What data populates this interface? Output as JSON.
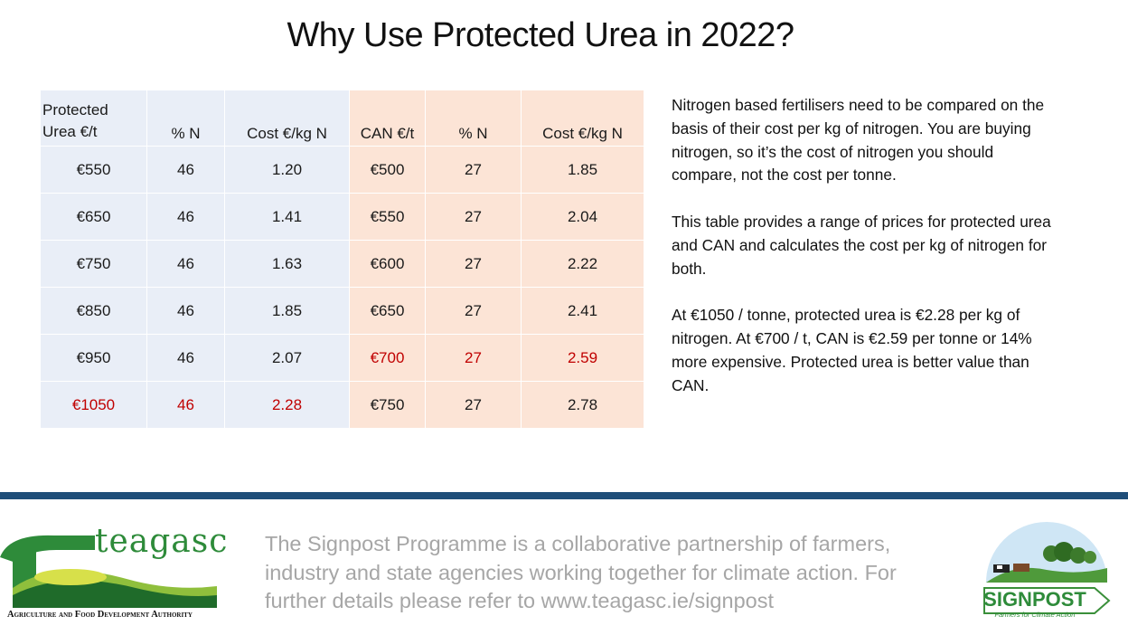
{
  "title": "Why Use Protected Urea in 2022?",
  "table": {
    "headers": {
      "urea_price_line1": "Protected",
      "urea_price_line2": "Urea €/t",
      "urea_n": "% N",
      "urea_cost": "Cost €/kg N",
      "can_price": "CAN €/t",
      "can_n": "% N",
      "can_cost": "Cost €/kg N"
    },
    "rows": [
      {
        "urea_price": "€550",
        "urea_n": "46",
        "urea_cost": "1.20",
        "can_price": "€500",
        "can_n": "27",
        "can_cost": "1.85"
      },
      {
        "urea_price": "€650",
        "urea_n": "46",
        "urea_cost": "1.41",
        "can_price": "€550",
        "can_n": "27",
        "can_cost": "2.04"
      },
      {
        "urea_price": "€750",
        "urea_n": "46",
        "urea_cost": "1.63",
        "can_price": "€600",
        "can_n": "27",
        "can_cost": "2.22"
      },
      {
        "urea_price": "€850",
        "urea_n": "46",
        "urea_cost": "1.85",
        "can_price": "€650",
        "can_n": "27",
        "can_cost": "2.41"
      },
      {
        "urea_price": "€950",
        "urea_n": "46",
        "urea_cost": "2.07",
        "can_price": "€700",
        "can_n": "27",
        "can_cost": "2.59"
      },
      {
        "urea_price": "€1050",
        "urea_n": "46",
        "urea_cost": "2.28",
        "can_price": "€750",
        "can_n": "27",
        "can_cost": "2.78"
      }
    ]
  },
  "description": {
    "p1": "Nitrogen based fertilisers need to be compared on the basis of their cost per kg of nitrogen. You are buying nitrogen, so it’s the cost of nitrogen you should compare, not the cost per tonne.",
    "p2": "This table provides a range of prices  for protected  urea and CAN and calculates the cost per kg of nitrogen for both.",
    "p3": "At €1050 / tonne, protected  urea is €2.28 per kg of nitrogen.  At €700 / t, CAN is €2.59 per tonne or 14% more expensive.  Protected  urea is better value than CAN."
  },
  "footer": {
    "text": "The Signpost Programme is a collaborative partnership of farmers, industry and state agencies working together for climate action.  For further details please refer to www.teagasc.ie/signpost"
  },
  "logos": {
    "teagasc_word": "teagasc",
    "teagasc_sub": "Agriculture and Food Development Authority",
    "signpost_word": "SIGNPOST",
    "signpost_tagline": "Farmers for Climate Action"
  },
  "colors": {
    "highlight": "#c00000",
    "blue_cell": "#e9eef7",
    "peach_cell": "#fce4d6",
    "footer_bar": "#1f4e79",
    "teagasc_green": "#2e8b3a"
  }
}
